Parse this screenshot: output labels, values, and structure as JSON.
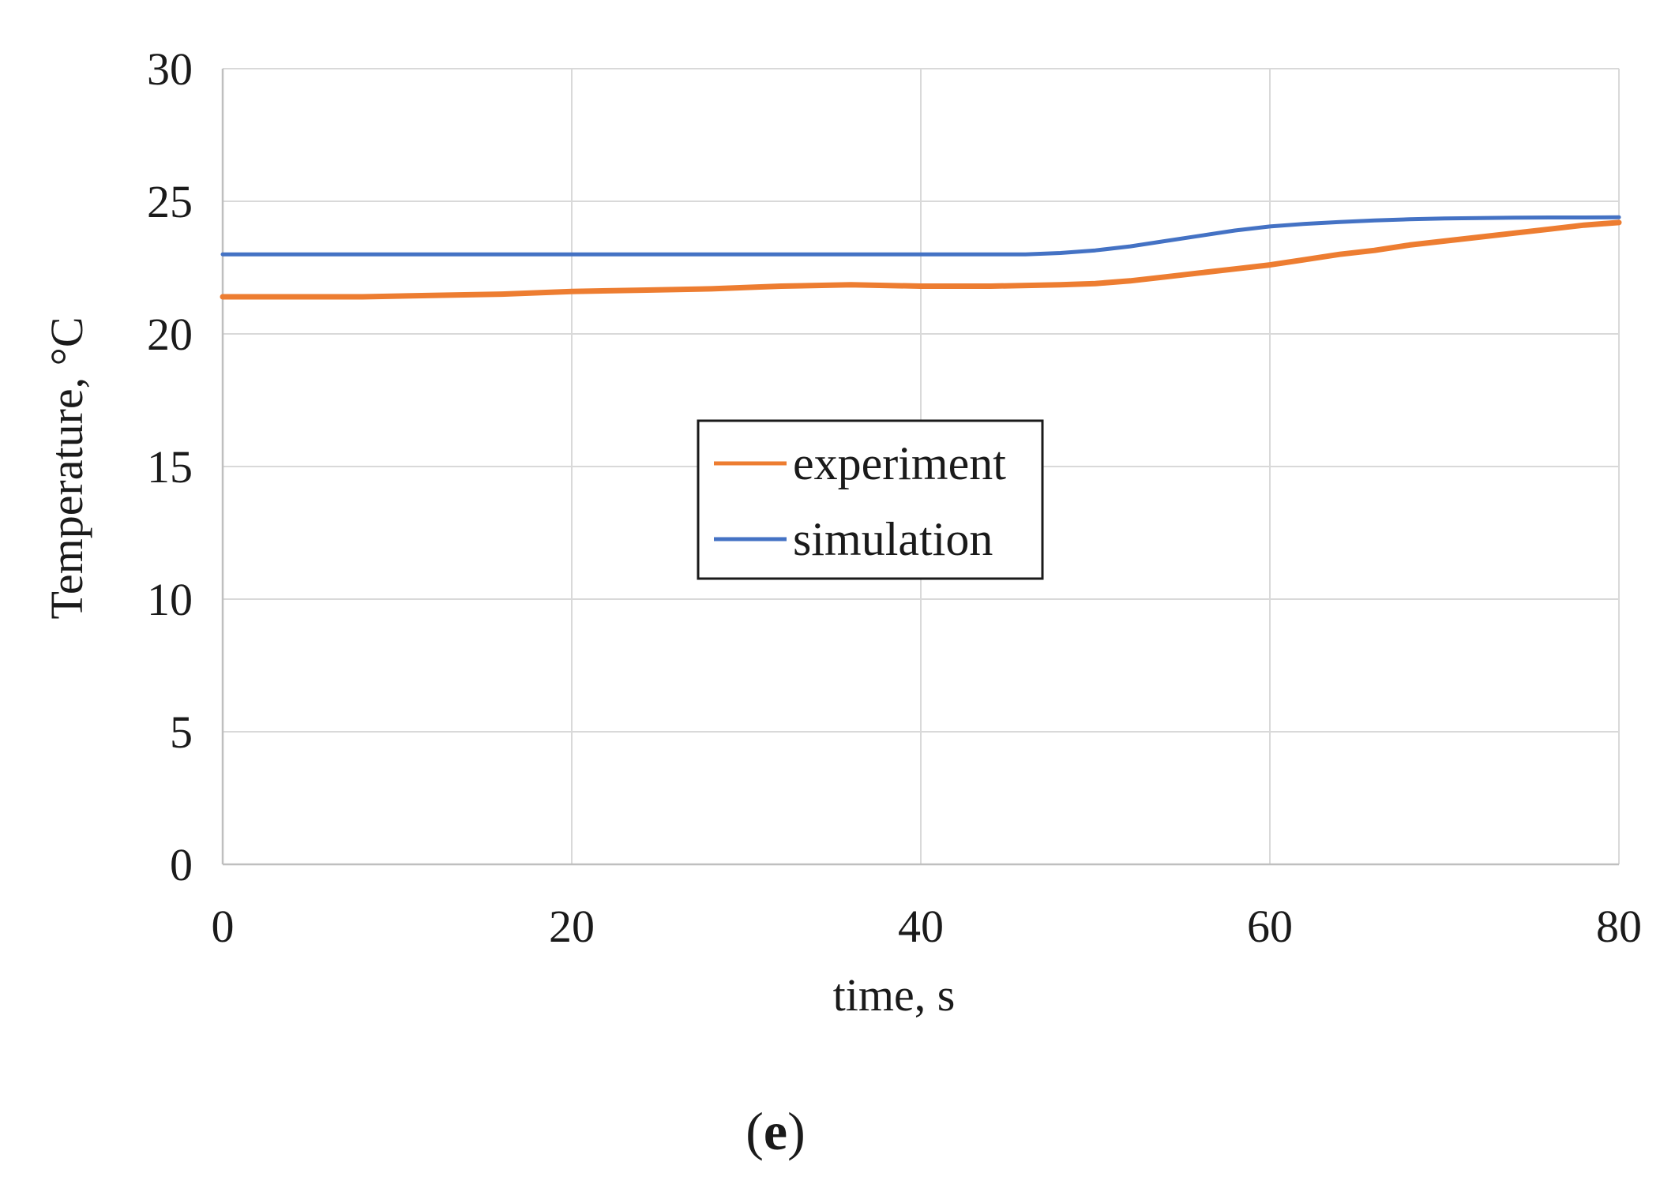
{
  "chart_data": {
    "type": "line",
    "title": "",
    "xlabel": "time, s",
    "ylabel": "Temperature, °C",
    "xlim": [
      0,
      80
    ],
    "ylim": [
      0,
      30
    ],
    "x_ticks": [
      0,
      20,
      40,
      60,
      80
    ],
    "y_ticks": [
      0,
      5,
      10,
      15,
      20,
      25,
      30
    ],
    "grid": true,
    "legend_position": "center",
    "series": [
      {
        "name": "experiment",
        "color": "#ed7d31",
        "x": [
          0,
          4,
          8,
          12,
          16,
          20,
          24,
          28,
          32,
          36,
          40,
          44,
          48,
          50,
          52,
          54,
          56,
          58,
          60,
          62,
          64,
          66,
          68,
          70,
          72,
          74,
          76,
          78,
          80
        ],
        "y": [
          21.4,
          21.4,
          21.4,
          21.45,
          21.5,
          21.6,
          21.65,
          21.7,
          21.8,
          21.85,
          21.8,
          21.8,
          21.85,
          21.9,
          22.0,
          22.15,
          22.3,
          22.45,
          22.6,
          22.8,
          23.0,
          23.15,
          23.35,
          23.5,
          23.65,
          23.8,
          23.95,
          24.1,
          24.2
        ]
      },
      {
        "name": "simulation",
        "color": "#4472c4",
        "x": [
          0,
          10,
          20,
          30,
          40,
          46,
          48,
          50,
          52,
          54,
          56,
          58,
          60,
          62,
          64,
          66,
          68,
          70,
          72,
          74,
          76,
          78,
          80
        ],
        "y": [
          23.0,
          23.0,
          23.0,
          23.0,
          23.0,
          23.0,
          23.05,
          23.15,
          23.3,
          23.5,
          23.7,
          23.9,
          24.05,
          24.15,
          24.22,
          24.28,
          24.32,
          24.35,
          24.37,
          24.38,
          24.39,
          24.39,
          24.4
        ]
      }
    ],
    "panel_label": {
      "open": "(",
      "letter": "e",
      "close": ")"
    }
  }
}
